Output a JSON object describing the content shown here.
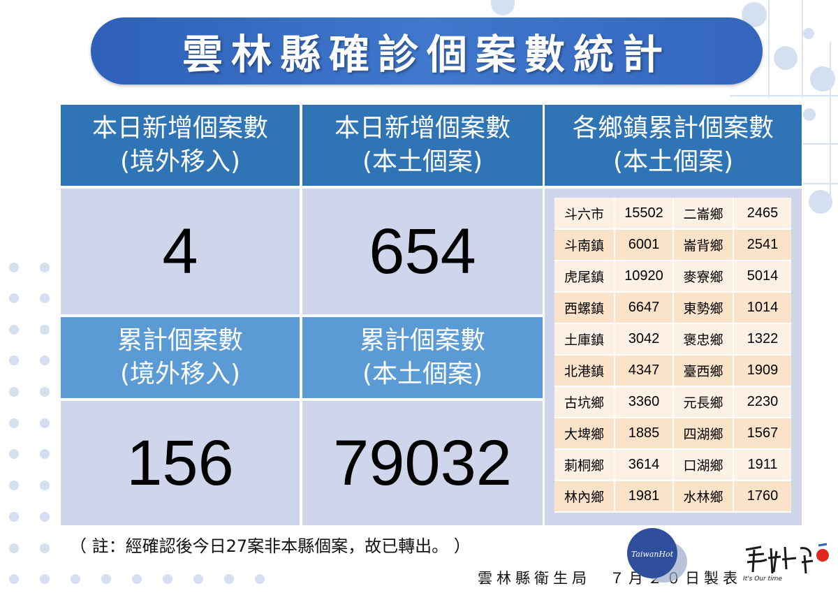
{
  "title": "雲林縣確診個案數統計",
  "headers": {
    "new_imported": [
      "本日新增個案數",
      "(境外移入)"
    ],
    "new_local": [
      "本日新增個案數",
      "(本土個案)"
    ],
    "town_cumulative": [
      "各鄉鎮累計個案數",
      "(本土個案)"
    ],
    "cum_imported": [
      "累計個案數",
      "(境外移入)"
    ],
    "cum_local": [
      "累計個案數",
      "(本土個案)"
    ]
  },
  "values": {
    "new_imported": "4",
    "new_local": "654",
    "cum_imported": "156",
    "cum_local": "79032"
  },
  "towns": [
    {
      "left_name": "斗六市",
      "left_value": "15502",
      "right_name": "二崙鄉",
      "right_value": "2465"
    },
    {
      "left_name": "斗南鎮",
      "left_value": "6001",
      "right_name": "崙背鄉",
      "right_value": "2541"
    },
    {
      "left_name": "虎尾鎮",
      "left_value": "10920",
      "right_name": "麥寮鄉",
      "right_value": "5014"
    },
    {
      "left_name": "西螺鎮",
      "left_value": "6647",
      "right_name": "東勢鄉",
      "right_value": "1014"
    },
    {
      "left_name": "土庫鎮",
      "left_value": "3042",
      "right_name": "褒忠鄉",
      "right_value": "1322"
    },
    {
      "left_name": "北港鎮",
      "left_value": "4347",
      "right_name": "臺西鄉",
      "right_value": "1909"
    },
    {
      "left_name": "古坑鄉",
      "left_value": "3360",
      "right_name": "元長鄉",
      "right_value": "2230"
    },
    {
      "left_name": "大埤鄉",
      "left_value": "1885",
      "right_name": "四湖鄉",
      "right_value": "1567"
    },
    {
      "left_name": "莿桐鄉",
      "left_value": "3614",
      "right_name": "口湖鄉",
      "right_value": "1911"
    },
    {
      "left_name": "林內鄉",
      "left_value": "1981",
      "right_name": "水林鄉",
      "right_value": "1760"
    }
  ],
  "note": "（ 註：經確認後今日27案非本縣個案，故已轉出。 ）",
  "footer": "雲林縣衛生局　７月２０日製表",
  "watermark": {
    "badge": "TaiwanHot",
    "logo": "雲林上場 It's Our time"
  },
  "colors": {
    "banner": "#3466bd",
    "header_dark": "#2f74b5",
    "header_light": "#5b9bd5",
    "value_bg": "#cfd5ea",
    "table_row_light": "#fdf0e4",
    "table_row_dark": "#fbe3c9"
  }
}
